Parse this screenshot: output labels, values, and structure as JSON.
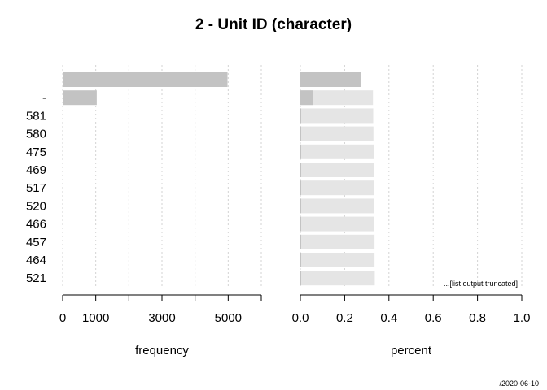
{
  "chart_data": [
    {
      "type": "bar",
      "orientation": "horizontal",
      "title": "2 - Unit ID (character)",
      "categories": [
        "",
        "-",
        "581",
        "580",
        "475",
        "469",
        "517",
        "520",
        "466",
        "457",
        "464",
        "521"
      ],
      "xlabel": "frequency",
      "xlim": [
        0,
        6000
      ],
      "x_ticks": [
        0,
        1000,
        2000,
        3000,
        4000,
        5000,
        6000
      ],
      "x_tick_labels": [
        "0",
        "1000",
        "",
        "3000",
        "",
        "5000",
        ""
      ],
      "values": [
        4980,
        1030,
        15,
        15,
        14,
        14,
        13,
        13,
        12,
        12,
        12,
        12
      ],
      "grid": "vertical dotted"
    },
    {
      "type": "bar",
      "orientation": "horizontal",
      "xlabel": "percent",
      "xlim": [
        0,
        1.0
      ],
      "x_ticks": [
        0,
        0.2,
        0.4,
        0.6,
        0.8,
        1.0
      ],
      "x_tick_labels": [
        "0.0",
        "0.2",
        "0.4",
        "0.6",
        "0.8",
        "1.0"
      ],
      "values": [
        0.272,
        0.056,
        0.001,
        0.001,
        0.001,
        0.001,
        0.001,
        0.001,
        0.001,
        0.001,
        0.001,
        0.001
      ],
      "cumulative": [
        0.272,
        0.328,
        0.329,
        0.33,
        0.331,
        0.332,
        0.332,
        0.333,
        0.334,
        0.335,
        0.335,
        0.336
      ],
      "note": "...[list output truncated]",
      "grid": "vertical dotted"
    }
  ],
  "footer": "/2020-06-10",
  "colors": {
    "bar": "#c3c3c3",
    "cumulative_bar": "#e5e5e5",
    "grid": "#d3d3d3",
    "axis": "#000000"
  }
}
